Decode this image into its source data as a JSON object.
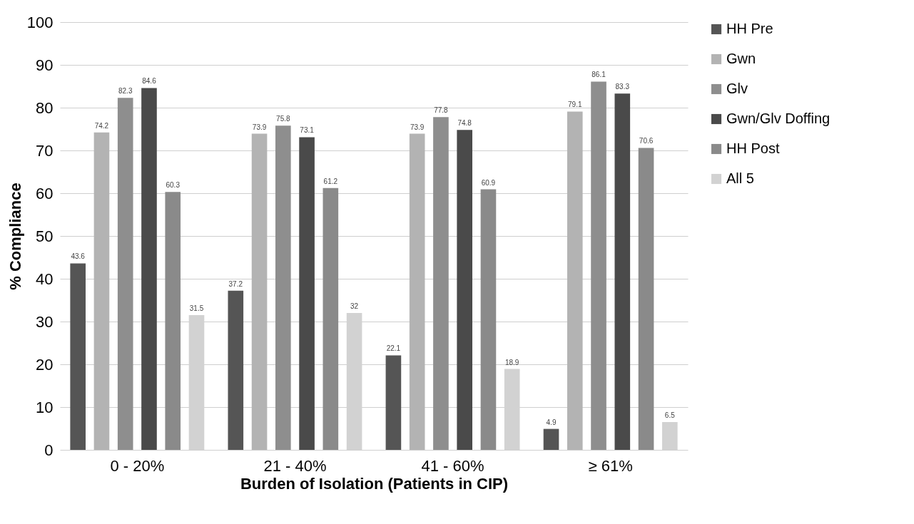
{
  "chart_data": {
    "type": "bar",
    "xlabel": "Burden of Isolation (Patients in CIP)",
    "ylabel": "% Compliance",
    "categories": [
      "0 - 20%",
      "21 - 40%",
      "41 - 60%",
      "≥ 61%"
    ],
    "series": [
      {
        "name": "HH Pre",
        "color": "#555555",
        "values": [
          43.6,
          37.2,
          22.1,
          4.9
        ]
      },
      {
        "name": "Gwn",
        "color": "#b3b3b3",
        "values": [
          74.2,
          73.9,
          73.9,
          79.1
        ]
      },
      {
        "name": "Glv",
        "color": "#8e8e8e",
        "values": [
          82.3,
          75.8,
          77.8,
          86.1
        ]
      },
      {
        "name": "Gwn/Glv Doffing",
        "color": "#4a4a4a",
        "values": [
          84.6,
          73.1,
          74.8,
          83.3
        ]
      },
      {
        "name": "HH Post",
        "color": "#8a8a8a",
        "values": [
          60.3,
          61.2,
          60.9,
          70.6
        ]
      },
      {
        "name": "All 5",
        "color": "#d2d2d2",
        "values": [
          31.5,
          32,
          18.9,
          6.5
        ]
      }
    ],
    "ylim": [
      0,
      100
    ],
    "yticks": [
      0,
      10,
      20,
      30,
      40,
      50,
      60,
      70,
      80,
      90,
      100
    ],
    "grid": "y",
    "legend": "right",
    "data_labels": true
  }
}
